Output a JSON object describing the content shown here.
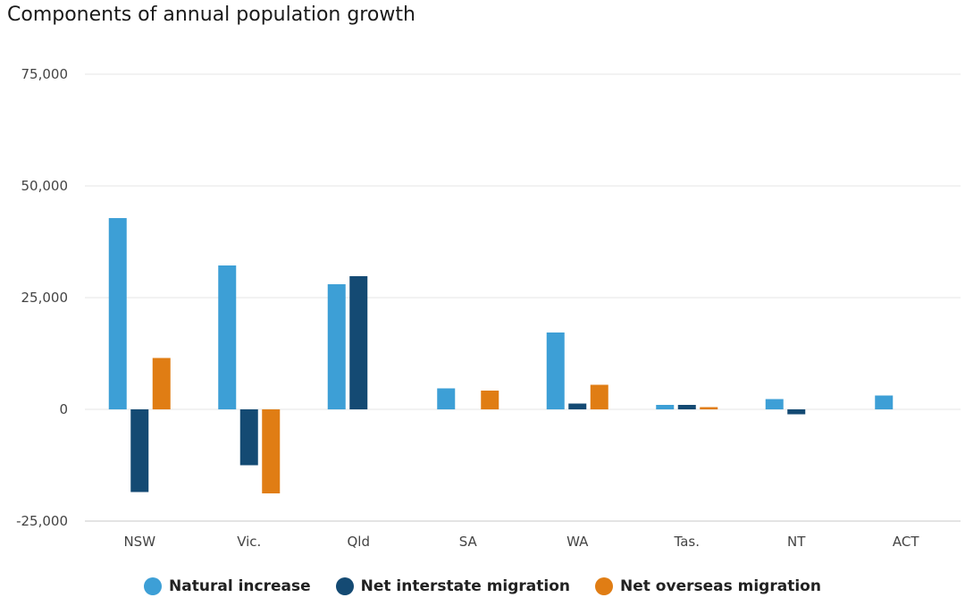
{
  "chart_data": {
    "type": "bar",
    "title": "Components of annual population growth",
    "xlabel": "",
    "ylabel": "",
    "categories": [
      "NSW",
      "Vic.",
      "Qld",
      "SA",
      "WA",
      "Tas.",
      "NT",
      "ACT"
    ],
    "series": [
      {
        "name": "Natural increase",
        "color": "#3d9fd6",
        "values": [
          42800,
          32200,
          28000,
          4700,
          17200,
          1000,
          2300,
          3100
        ]
      },
      {
        "name": "Net interstate migration",
        "color": "#144a73",
        "values": [
          -18500,
          -12500,
          29800,
          0,
          1300,
          1000,
          -1100,
          0
        ]
      },
      {
        "name": "Net overseas migration",
        "color": "#e07d14",
        "values": [
          11500,
          -18800,
          0,
          4200,
          5500,
          500,
          0,
          0
        ]
      }
    ],
    "ylim": [
      -25000,
      75000
    ],
    "yticks": [
      -25000,
      0,
      25000,
      50000,
      75000
    ],
    "ytick_labels": [
      "-25,000",
      "0",
      "25,000",
      "50,000",
      "75,000"
    ],
    "grid": true,
    "legend_position": "bottom"
  }
}
